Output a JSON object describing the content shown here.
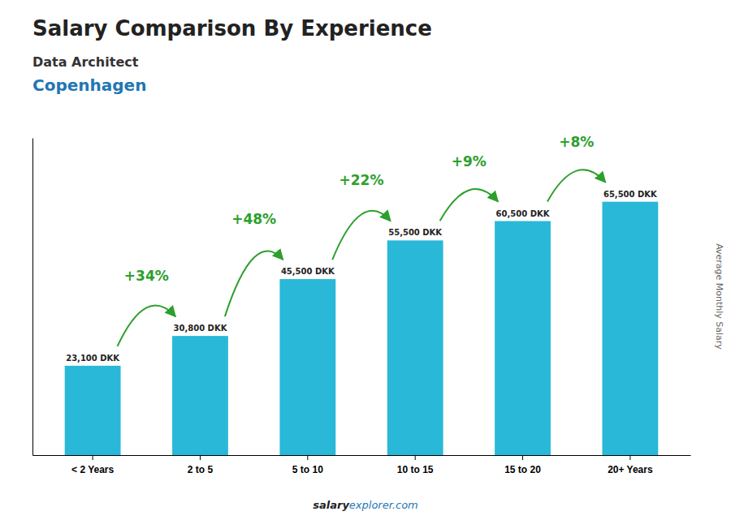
{
  "chart_data": {
    "type": "bar",
    "title": "Salary Comparison By Experience",
    "subtitle": [
      "Data Architect",
      "Copenhagen"
    ],
    "ylabel": "Average Monthly Salary",
    "categories": [
      "< 2 Years",
      "2 to 5",
      "5 to 10",
      "10 to 15",
      "15 to 20",
      "20+ Years"
    ],
    "values": [
      23100,
      30800,
      45500,
      55500,
      60500,
      65500
    ],
    "value_labels": [
      "23,100 DKK",
      "30,800 DKK",
      "45,500 DKK",
      "55,500 DKK",
      "60,500 DKK",
      "65,500 DKK"
    ],
    "data_labels": true,
    "color": "#29b8d8",
    "ylim": [
      0,
      82000
    ],
    "grid": false,
    "tick_labels": "x",
    "annotations": [
      {
        "text": "+34%",
        "from": "< 2 Years",
        "to": "2 to 5"
      },
      {
        "text": "+48%",
        "from": "2 to 5",
        "to": "5 to 10"
      },
      {
        "text": "+22%",
        "from": "5 to 10",
        "to": "10 to 15"
      },
      {
        "text": "+9%",
        "from": "10 to 15",
        "to": "15 to 20"
      },
      {
        "text": "+8%",
        "from": "15 to 20",
        "to": "20+ Years"
      }
    ],
    "footer": [
      "salary",
      "explorer.com"
    ]
  }
}
